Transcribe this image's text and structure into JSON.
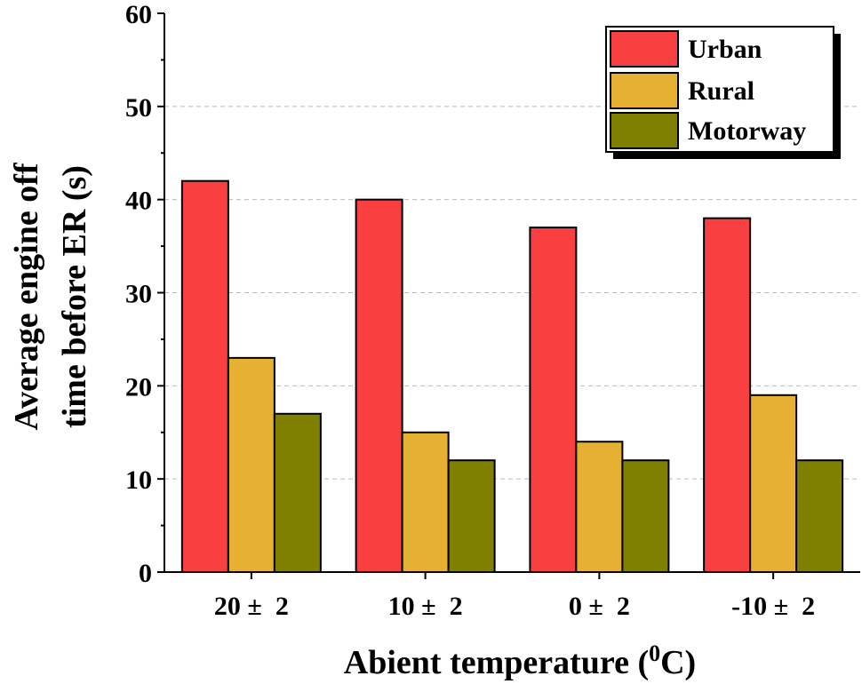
{
  "chart_data": {
    "type": "bar",
    "title": "",
    "xlabel": "Abient temperature (",
    "xlabel_sup": "0",
    "xlabel_suffix": "C)",
    "ylabel_line1": "Average engine off",
    "ylabel_line2": "time before ER (s)",
    "categories": [
      "20 ±  2",
      "10 ±  2",
      "0 ±  2",
      "-10 ±  2"
    ],
    "series": [
      {
        "name": "Urban",
        "color": "#f84040",
        "values": [
          42,
          40,
          37,
          38
        ]
      },
      {
        "name": "Rural",
        "color": "#e6b032",
        "values": [
          23,
          15,
          14,
          19
        ]
      },
      {
        "name": "Motorway",
        "color": "#808000",
        "values": [
          17,
          12,
          12,
          12
        ]
      }
    ],
    "ylim": [
      0,
      60
    ],
    "yticks": [
      "0",
      "10",
      "20",
      "30",
      "40",
      "50",
      "60"
    ],
    "grid": true,
    "legend_position": "top-right"
  }
}
